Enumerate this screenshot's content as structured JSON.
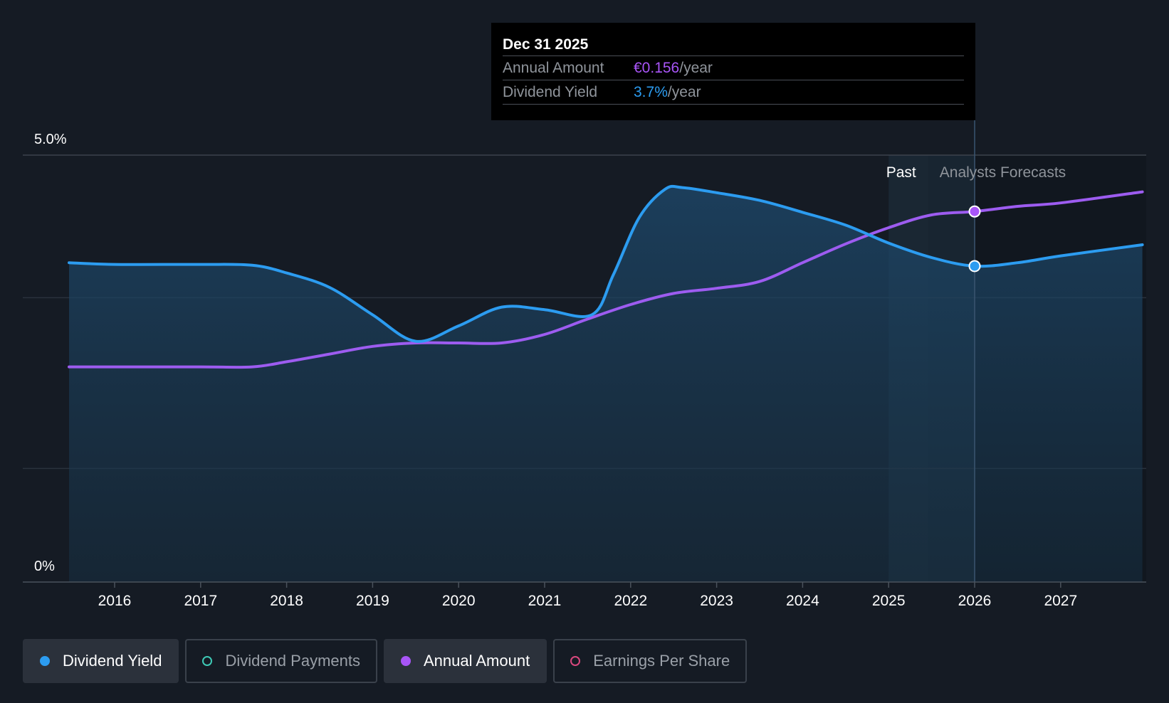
{
  "tooltip": {
    "date": "Dec 31 2025",
    "rows": [
      {
        "label": "Annual Amount",
        "value": "€0.156",
        "suffix": "/year"
      },
      {
        "label": "Dividend Yield",
        "value": "3.7%",
        "suffix": "/year"
      }
    ]
  },
  "region_labels": {
    "past": "Past",
    "forecast": "Analysts Forecasts"
  },
  "legend": [
    {
      "label": "Dividend Yield",
      "color": "#2c9cf0",
      "active": true
    },
    {
      "label": "Dividend Payments",
      "color": "#3ec9b5",
      "active": false
    },
    {
      "label": "Annual Amount",
      "color": "#a855f7",
      "active": true
    },
    {
      "label": "Earnings Per Share",
      "color": "#d9487e",
      "active": false
    }
  ],
  "colors": {
    "yield": "#2c9cf0",
    "amount": "#9d5cf0",
    "background": "#151b24"
  },
  "chart_data": {
    "type": "line",
    "y_ticks": [
      {
        "value": 0,
        "label": "0%"
      },
      {
        "value": 5,
        "label": "5.0%"
      }
    ],
    "ylim": [
      0,
      5
    ],
    "xlim": [
      2015.47,
      2027.95
    ],
    "x_ticks": [
      {
        "value": 2016,
        "label": "2016"
      },
      {
        "value": 2017,
        "label": "2017"
      },
      {
        "value": 2018,
        "label": "2018"
      },
      {
        "value": 2019,
        "label": "2019"
      },
      {
        "value": 2020,
        "label": "2020"
      },
      {
        "value": 2021,
        "label": "2021"
      },
      {
        "value": 2022,
        "label": "2022"
      },
      {
        "value": 2023,
        "label": "2023"
      },
      {
        "value": 2024,
        "label": "2024"
      },
      {
        "value": 2025,
        "label": "2025"
      },
      {
        "value": 2026,
        "label": "2026"
      },
      {
        "value": 2027,
        "label": "2027"
      }
    ],
    "past_boundary": 2025.46,
    "tooltip_x": 2026.0,
    "series": [
      {
        "name": "Dividend Yield",
        "points": [
          [
            2015.47,
            3.74
          ],
          [
            2016.0,
            3.72
          ],
          [
            2017.0,
            3.72
          ],
          [
            2017.6,
            3.71
          ],
          [
            2018.0,
            3.62
          ],
          [
            2018.5,
            3.45
          ],
          [
            2019.0,
            3.13
          ],
          [
            2019.5,
            2.82
          ],
          [
            2020.0,
            3.0
          ],
          [
            2020.5,
            3.22
          ],
          [
            2021.0,
            3.19
          ],
          [
            2021.55,
            3.13
          ],
          [
            2021.8,
            3.6
          ],
          [
            2022.1,
            4.27
          ],
          [
            2022.4,
            4.6
          ],
          [
            2022.6,
            4.62
          ],
          [
            2023.0,
            4.56
          ],
          [
            2023.5,
            4.47
          ],
          [
            2024.0,
            4.33
          ],
          [
            2024.5,
            4.18
          ],
          [
            2025.0,
            3.97
          ],
          [
            2025.5,
            3.8
          ],
          [
            2026.0,
            3.7
          ],
          [
            2026.5,
            3.74
          ],
          [
            2027.0,
            3.82
          ],
          [
            2027.95,
            3.95
          ]
        ]
      },
      {
        "name": "Annual Amount",
        "points": [
          [
            2015.47,
            2.52
          ],
          [
            2016.0,
            2.52
          ],
          [
            2017.0,
            2.52
          ],
          [
            2017.6,
            2.52
          ],
          [
            2018.0,
            2.58
          ],
          [
            2018.5,
            2.67
          ],
          [
            2019.0,
            2.76
          ],
          [
            2019.5,
            2.8
          ],
          [
            2020.0,
            2.8
          ],
          [
            2020.5,
            2.8
          ],
          [
            2021.0,
            2.9
          ],
          [
            2021.5,
            3.08
          ],
          [
            2022.0,
            3.25
          ],
          [
            2022.5,
            3.38
          ],
          [
            2023.0,
            3.44
          ],
          [
            2023.5,
            3.52
          ],
          [
            2024.0,
            3.74
          ],
          [
            2024.5,
            3.96
          ],
          [
            2025.0,
            4.15
          ],
          [
            2025.5,
            4.3
          ],
          [
            2026.0,
            4.34
          ],
          [
            2026.5,
            4.4
          ],
          [
            2027.0,
            4.44
          ],
          [
            2027.95,
            4.57
          ]
        ]
      }
    ],
    "highlight_values": {
      "Dividend Yield": 3.7,
      "Annual Amount": 4.34
    }
  }
}
